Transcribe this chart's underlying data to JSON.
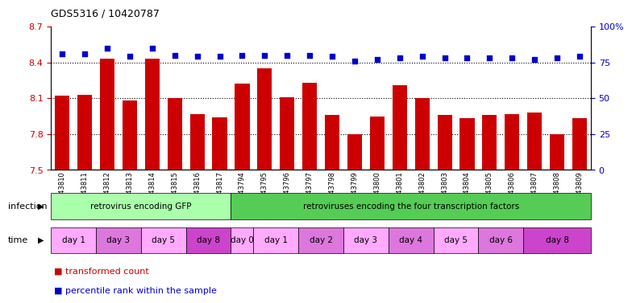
{
  "title": "GDS5316 / 10420787",
  "samples": [
    "GSM943810",
    "GSM943811",
    "GSM943812",
    "GSM943813",
    "GSM943814",
    "GSM943815",
    "GSM943816",
    "GSM943817",
    "GSM943794",
    "GSM943795",
    "GSM943796",
    "GSM943797",
    "GSM943798",
    "GSM943799",
    "GSM943800",
    "GSM943801",
    "GSM943802",
    "GSM943803",
    "GSM943804",
    "GSM943805",
    "GSM943806",
    "GSM943807",
    "GSM943808",
    "GSM943809"
  ],
  "bar_values": [
    8.12,
    8.13,
    8.43,
    8.08,
    8.43,
    8.1,
    7.97,
    7.94,
    8.22,
    8.35,
    8.11,
    8.23,
    7.96,
    7.8,
    7.95,
    8.21,
    8.1,
    7.96,
    7.93,
    7.96,
    7.97,
    7.98,
    7.8,
    7.93
  ],
  "percentile_values": [
    81,
    81,
    85,
    79,
    85,
    80,
    79,
    79,
    80,
    80,
    80,
    80,
    79,
    76,
    77,
    78,
    79,
    78,
    78,
    78,
    78,
    77,
    78,
    79
  ],
  "ylim_left": [
    7.5,
    8.7
  ],
  "ylim_right": [
    0,
    100
  ],
  "yticks_left": [
    7.5,
    7.8,
    8.1,
    8.4,
    8.7
  ],
  "ytick_labels_left": [
    "7.5",
    "7.8",
    "8.1",
    "8.4",
    "8.7"
  ],
  "yticks_right": [
    0,
    25,
    50,
    75,
    100
  ],
  "ytick_labels_right": [
    "0",
    "25",
    "50",
    "75",
    "100%"
  ],
  "bar_color": "#cc0000",
  "dot_color": "#0000cc",
  "bg_color": "#ffffff",
  "infection_groups": [
    {
      "label": "retrovirus encoding GFP",
      "start": 0,
      "end": 8,
      "color": "#aaffaa"
    },
    {
      "label": "retroviruses encoding the four transcription factors",
      "start": 8,
      "end": 24,
      "color": "#55cc55"
    }
  ],
  "time_groups": [
    {
      "label": "day 1",
      "start": 0,
      "end": 2,
      "color": "#ffaaff"
    },
    {
      "label": "day 3",
      "start": 2,
      "end": 4,
      "color": "#dd77dd"
    },
    {
      "label": "day 5",
      "start": 4,
      "end": 6,
      "color": "#ffaaff"
    },
    {
      "label": "day 8",
      "start": 6,
      "end": 8,
      "color": "#cc44cc"
    },
    {
      "label": "day 0",
      "start": 8,
      "end": 9,
      "color": "#ffaaff"
    },
    {
      "label": "day 1",
      "start": 9,
      "end": 11,
      "color": "#ffaaff"
    },
    {
      "label": "day 2",
      "start": 11,
      "end": 13,
      "color": "#dd77dd"
    },
    {
      "label": "day 3",
      "start": 13,
      "end": 15,
      "color": "#ffaaff"
    },
    {
      "label": "day 4",
      "start": 15,
      "end": 17,
      "color": "#dd77dd"
    },
    {
      "label": "day 5",
      "start": 17,
      "end": 19,
      "color": "#ffaaff"
    },
    {
      "label": "day 6",
      "start": 19,
      "end": 21,
      "color": "#dd77dd"
    },
    {
      "label": "day 8",
      "start": 21,
      "end": 24,
      "color": "#cc44cc"
    }
  ],
  "legend_items": [
    {
      "label": "transformed count",
      "color": "#cc0000"
    },
    {
      "label": "percentile rank within the sample",
      "color": "#0000cc"
    }
  ]
}
